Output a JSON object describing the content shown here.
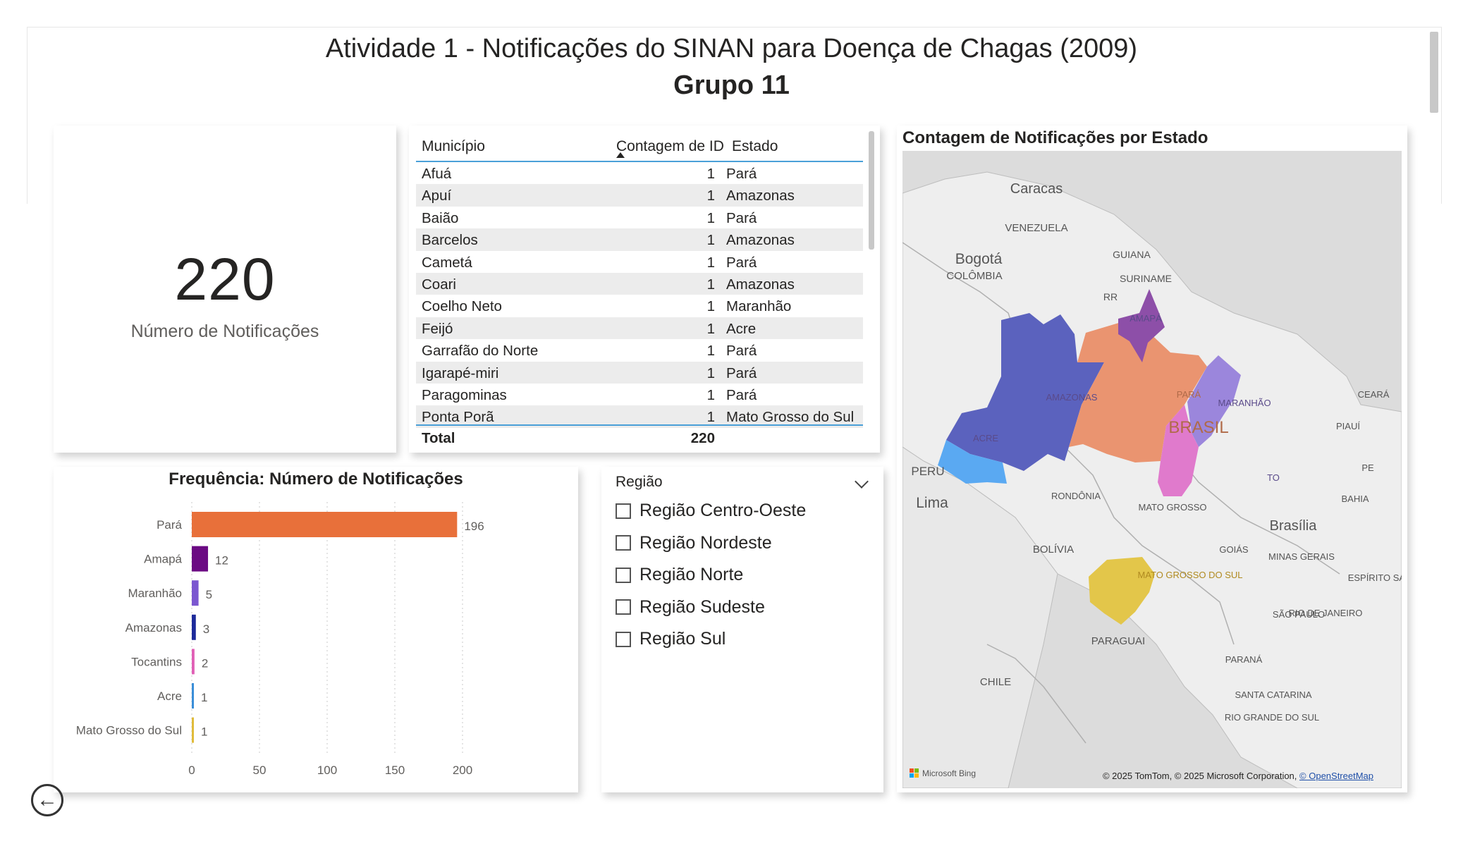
{
  "header": {
    "title": "Atividade 1 - Notificações do SINAN para Doença de Chagas (2009)",
    "subtitle": "Grupo 11"
  },
  "kpi": {
    "value": "220",
    "label": "Número de Notificações"
  },
  "table": {
    "columns": [
      "Município",
      "Contagem de ID",
      "Estado"
    ],
    "rows": [
      {
        "municipio": "Afuá",
        "contagem": "1",
        "estado": "Pará"
      },
      {
        "municipio": "Apuí",
        "contagem": "1",
        "estado": "Amazonas"
      },
      {
        "municipio": "Baião",
        "contagem": "1",
        "estado": "Pará"
      },
      {
        "municipio": "Barcelos",
        "contagem": "1",
        "estado": "Amazonas"
      },
      {
        "municipio": "Cametá",
        "contagem": "1",
        "estado": "Pará"
      },
      {
        "municipio": "Coari",
        "contagem": "1",
        "estado": "Amazonas"
      },
      {
        "municipio": "Coelho Neto",
        "contagem": "1",
        "estado": "Maranhão"
      },
      {
        "municipio": "Feijó",
        "contagem": "1",
        "estado": "Acre"
      },
      {
        "municipio": "Garrafão do Norte",
        "contagem": "1",
        "estado": "Pará"
      },
      {
        "municipio": "Igarapé-miri",
        "contagem": "1",
        "estado": "Pará"
      },
      {
        "municipio": "Paragominas",
        "contagem": "1",
        "estado": "Pará"
      },
      {
        "municipio": "Ponta Porã",
        "contagem": "1",
        "estado": "Mato Grosso do Sul"
      }
    ],
    "total_label": "Total",
    "total_value": "220"
  },
  "map": {
    "title": "Contagem de Notificações por Estado",
    "labels": [
      "Caracas",
      "VENEZUELA",
      "Bogotá",
      "COLÔMBIA",
      "GUIANA",
      "SURINAME",
      "RR",
      "AMAPÁ",
      "AMAZONAS",
      "PARÁ",
      "MARANHÃO",
      "CEARÁ",
      "BRASIL",
      "PIAUÍ",
      "ACRE",
      "PERU",
      "TO",
      "Lima",
      "RONDÔNIA",
      "MATO GROSSO",
      "BAHIA",
      "Brasília",
      "BOLÍVIA",
      "GOIÁS",
      "MINAS GERAIS",
      "MATO GROSSO DO SUL",
      "ESPÍRITO SANTO",
      "SÃO PAULO",
      "RIO DE JANEIRO",
      "PARAGUAI",
      "PARANÁ",
      "CHILE",
      "SANTA CATARINA",
      "RIO GRANDE DO SUL",
      "PE"
    ],
    "credit": "© 2025 TomTom, © 2025 Microsoft Corporation,",
    "credit_link": "© OpenStreetMap",
    "bing": "Microsoft Bing",
    "colors": {
      "Amazonas": "#5b62be",
      "Pará": "#ea9470",
      "Amapá": "#8d4fa8",
      "Maranhão": "#9b86dc",
      "Tocantins": "#e07acc",
      "Acre": "#5aa9f2",
      "Mato Grosso do Sul": "#e3c64a"
    }
  },
  "chart_data": {
    "type": "bar",
    "orientation": "horizontal",
    "title": "Frequência: Número de Notificações",
    "categories": [
      "Pará",
      "Amapá",
      "Maranhão",
      "Amazonas",
      "Tocantins",
      "Acre",
      "Mato Grosso do Sul"
    ],
    "values": [
      196,
      12,
      5,
      3,
      2,
      1,
      1
    ],
    "colors": [
      "#e8703a",
      "#6b0a83",
      "#7b57d0",
      "#1d2a9a",
      "#e05eb5",
      "#3a8ed8",
      "#e0bb3a"
    ],
    "xlim": [
      0,
      200
    ],
    "xticks": [
      0,
      50,
      100,
      150,
      200
    ],
    "grid": true
  },
  "slicer": {
    "title": "Região",
    "options": [
      "Região Centro-Oeste",
      "Região Nordeste",
      "Região Norte",
      "Região Sudeste",
      "Região Sul"
    ]
  },
  "nav": {
    "back_icon": "←"
  }
}
